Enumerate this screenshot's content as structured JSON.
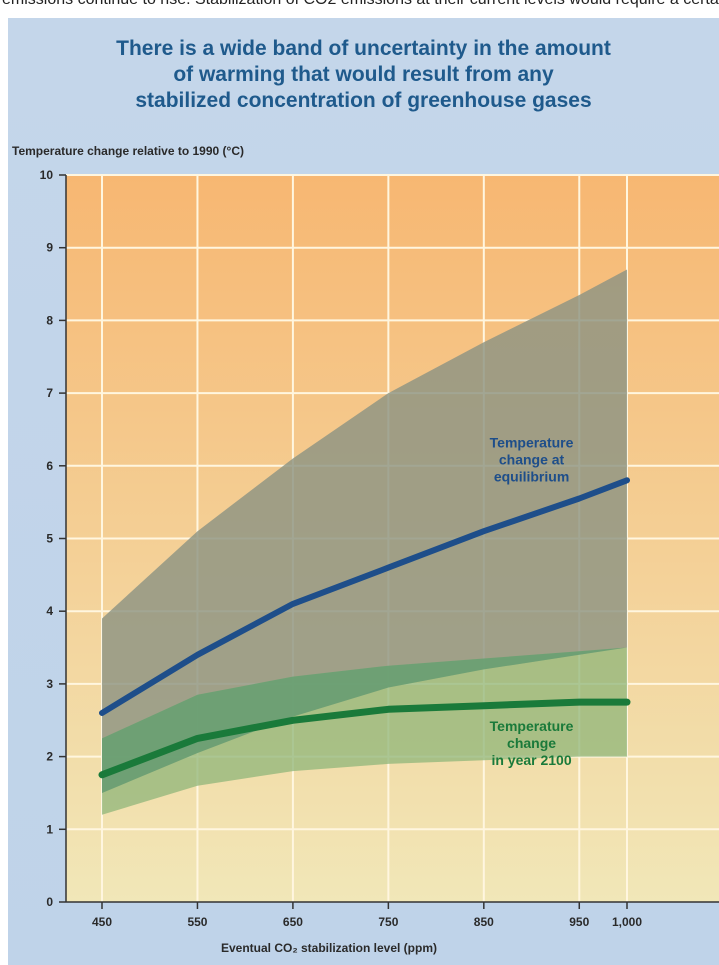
{
  "top_strip_text": "emissions continue to rise. Stabilization of CO2 emissions at their current levels would require a certain path.",
  "title_lines": [
    "There is a wide band of uncertainty in the amount",
    "of warming that would result from any",
    "stabilized concentration of greenhouse gases"
  ],
  "colors": {
    "title": "#1f5a8c",
    "equilibrium_line": "#1e4e8a",
    "year2100_line": "#1a7a3a",
    "equilibrium_band": "#8e9482",
    "year2100_band_outer": "#8fb57a",
    "year2100_band_inner": "#5e9a70",
    "plot_top": "#f7b772",
    "plot_bottom": "#f1e7b8"
  },
  "chart_data": {
    "type": "line",
    "title": "There is a wide band of uncertainty in the amount of warming that would result from any stabilized concentration of greenhouse gases",
    "ylabel": "Temperature change relative to 1990 (°C)",
    "xlabel": "Eventual CO₂ stabilization level (ppm)",
    "xlim": [
      450,
      1000
    ],
    "ylim": [
      0,
      10
    ],
    "x_ticks": [
      450,
      550,
      650,
      750,
      850,
      950,
      1000
    ],
    "x_tick_labels": [
      "450",
      "550",
      "650",
      "750",
      "850",
      "950",
      "1,000"
    ],
    "y_ticks": [
      0,
      1,
      2,
      3,
      4,
      5,
      6,
      7,
      8,
      9,
      10
    ],
    "grid": true,
    "x": [
      450,
      550,
      650,
      750,
      850,
      950,
      1000
    ],
    "series": [
      {
        "name": "Temperature change at equilibrium",
        "values": [
          2.6,
          3.4,
          4.1,
          4.6,
          5.1,
          5.55,
          5.8
        ],
        "band_low": [
          1.5,
          2.05,
          2.55,
          2.95,
          3.2,
          3.4,
          3.5
        ],
        "band_high": [
          3.9,
          5.1,
          6.1,
          7.0,
          7.7,
          8.35,
          8.7
        ]
      },
      {
        "name": "Temperature change in year 2100",
        "values": [
          1.75,
          2.25,
          2.5,
          2.65,
          2.7,
          2.75,
          2.75
        ],
        "band_low": [
          1.2,
          1.6,
          1.8,
          1.9,
          1.95,
          2.0,
          2.0
        ],
        "band_high": [
          2.25,
          2.85,
          3.1,
          3.25,
          3.35,
          3.45,
          3.5
        ]
      }
    ],
    "annotations": [
      {
        "series": 0,
        "lines": [
          "Temperature",
          "change at",
          "equilibrium"
        ]
      },
      {
        "series": 1,
        "lines": [
          "Temperature",
          "change",
          "in year 2100"
        ]
      }
    ]
  }
}
